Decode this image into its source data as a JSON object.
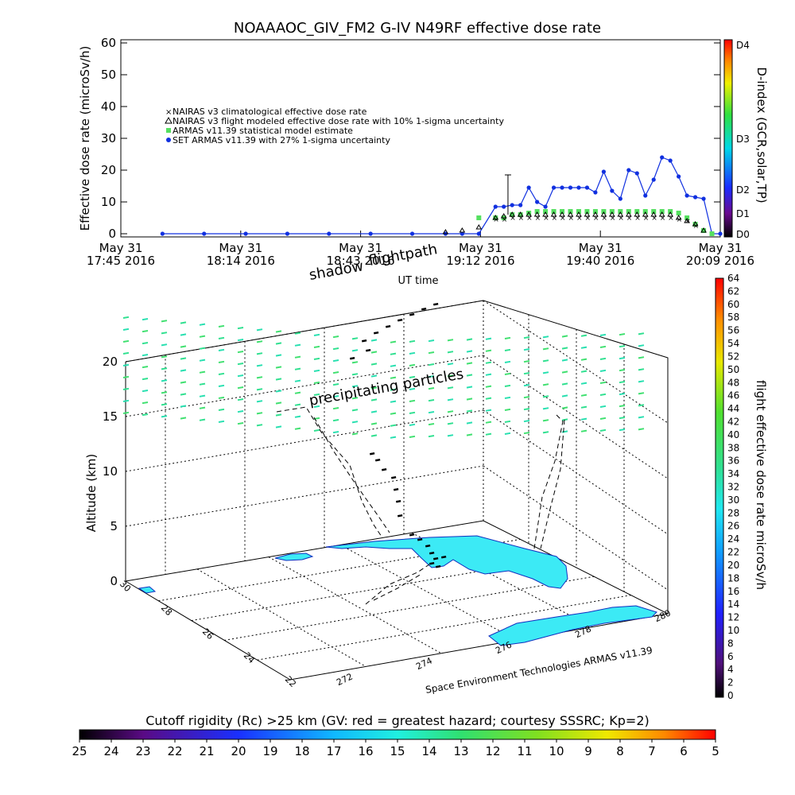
{
  "title": "NOAAAOC_GIV_FM2 G-IV   N49RF  effective dose rate",
  "colors": {
    "nairas_clim": "#d02020",
    "nairas_flight": "#000000",
    "armas_stat": "#55e060",
    "set_armas": "#1030e0",
    "fill_map": "#3ceaf5"
  },
  "top_chart": {
    "ylabel": "Effective dose rate (microSv/h)",
    "xlabel": "UT time",
    "right_label": "D-index (GCR,solar,TP)",
    "yticks": [
      "0",
      "10",
      "20",
      "30",
      "40",
      "50",
      "60"
    ],
    "xticks": [
      {
        "l1": "May 31",
        "l2": "17:45 2016"
      },
      {
        "l1": "May 31",
        "l2": "18:14 2016"
      },
      {
        "l1": "May 31",
        "l2": "18:43 2016"
      },
      {
        "l1": "May 31",
        "l2": "19:12 2016"
      },
      {
        "l1": "May 31",
        "l2": "19:40 2016"
      },
      {
        "l1": "May 31",
        "l2": "20:09 2016"
      }
    ],
    "dindex_ticks": [
      "D0",
      "D1",
      "D2",
      "D3",
      "D4"
    ],
    "legend": [
      "NAIRAS v3 climatological effective dose rate",
      "NAIRAS v3 flight modeled effective dose rate with 10% 1-sigma uncertainty",
      "ARMAS v11.39 statistical model estimate",
      "SET ARMAS v11.39 with 27% 1-sigma uncertainty"
    ]
  },
  "chart_data": [
    {
      "type": "line",
      "title": "NOAAAOC_GIV_FM2 G-IV   N49RF  effective dose rate",
      "xlabel": "UT time",
      "ylabel": "Effective dose rate (microSv/h)",
      "xlim": [
        "17:45",
        "20:09"
      ],
      "ylim": [
        0,
        60
      ],
      "x_minutes_after_1745": [
        10,
        20,
        30,
        40,
        50,
        60,
        70,
        78,
        82,
        86,
        90,
        92,
        94,
        96,
        98,
        100,
        102,
        104,
        106,
        108,
        110,
        112,
        114,
        116,
        118,
        120,
        122,
        124,
        126,
        128,
        130,
        132,
        134,
        136,
        138,
        140,
        142,
        144,
        146,
        148,
        150,
        160,
        170,
        180,
        190,
        200,
        210
      ],
      "series": [
        {
          "name": "SET ARMAS v11.39 with 27% 1-sigma uncertainty",
          "values": [
            0,
            0,
            0,
            0,
            0,
            0,
            0,
            0,
            0,
            0,
            8.5,
            8.5,
            9,
            9,
            14.5,
            10,
            8.5,
            14.5,
            14.5,
            14.5,
            14.5,
            14.5,
            13,
            19.5,
            13.5,
            11,
            20,
            19,
            12,
            17,
            24,
            23,
            18,
            12,
            11.5,
            11,
            0,
            0,
            0,
            0,
            0,
            0,
            0,
            0,
            0,
            0,
            0
          ]
        },
        {
          "name": "ARMAS v11.39 statistical model estimate",
          "values": [
            null,
            null,
            null,
            null,
            null,
            null,
            null,
            null,
            null,
            5,
            5,
            5,
            6,
            6,
            6.5,
            7,
            7,
            7,
            7,
            7,
            7,
            7,
            7,
            7,
            7,
            7,
            7,
            7,
            7,
            7,
            7,
            7,
            6.5,
            5,
            3,
            1,
            0,
            null,
            null,
            null,
            null,
            null,
            null,
            null,
            null,
            null,
            null
          ]
        },
        {
          "name": "NAIRAS v3 climatological effective dose rate",
          "values": [
            null,
            null,
            null,
            null,
            null,
            null,
            null,
            null,
            null,
            null,
            4.5,
            4.5,
            5,
            5,
            5,
            5,
            5,
            5,
            5,
            5,
            5,
            5,
            5,
            5,
            5,
            5,
            5,
            5,
            5,
            5,
            5,
            5,
            4.5,
            4,
            2.5,
            null,
            null,
            null,
            null,
            null,
            null,
            null,
            null,
            null,
            null,
            null,
            null
          ]
        },
        {
          "name": "NAIRAS v3 flight modeled effective dose rate with 10% 1-sigma uncertainty",
          "values": [
            null,
            null,
            null,
            null,
            null,
            null,
            null,
            0.5,
            1,
            2,
            5,
            5.5,
            6,
            6,
            6,
            6,
            6,
            6,
            6,
            6,
            6,
            6,
            6,
            6,
            6,
            6,
            6,
            6,
            6,
            6,
            6,
            6,
            5,
            4,
            3,
            1,
            null,
            null,
            null,
            null,
            null,
            null,
            null,
            null,
            null,
            null,
            null
          ]
        }
      ]
    },
    {
      "type": "scatter",
      "ylabel": "Altitude (km)",
      "zticks": [
        "0",
        "5",
        "10",
        "15",
        "20"
      ],
      "lat_ticks": [
        "30",
        "28",
        "26",
        "24",
        "22"
      ],
      "lon_ticks": [
        "272",
        "274",
        "276",
        "278",
        "280"
      ],
      "colorbar_label": "flight effective dose rate microSv/h",
      "colorbar_ticks": [
        "0",
        "2",
        "4",
        "6",
        "8",
        "10",
        "12",
        "14",
        "16",
        "18",
        "20",
        "22",
        "24",
        "26",
        "28",
        "30",
        "32",
        "34",
        "36",
        "38",
        "40",
        "42",
        "44",
        "46",
        "48",
        "50",
        "52",
        "54",
        "56",
        "58",
        "60",
        "62",
        "64"
      ],
      "annotations": [
        "shadow",
        "flightpath",
        "precipitating particles"
      ],
      "credit": "Space Environment Technologies ARMAS v11.39"
    },
    {
      "type": "colorbar",
      "title": "Cutoff rigidity (Rc) >25 km (GV: red = greatest hazard; courtesy SSSRC; Kp=2)",
      "ticks": [
        "25",
        "24",
        "23",
        "22",
        "21",
        "20",
        "19",
        "18",
        "17",
        "16",
        "15",
        "14",
        "13",
        "12",
        "11",
        "10",
        "9",
        "8",
        "7",
        "6",
        "5"
      ]
    }
  ]
}
